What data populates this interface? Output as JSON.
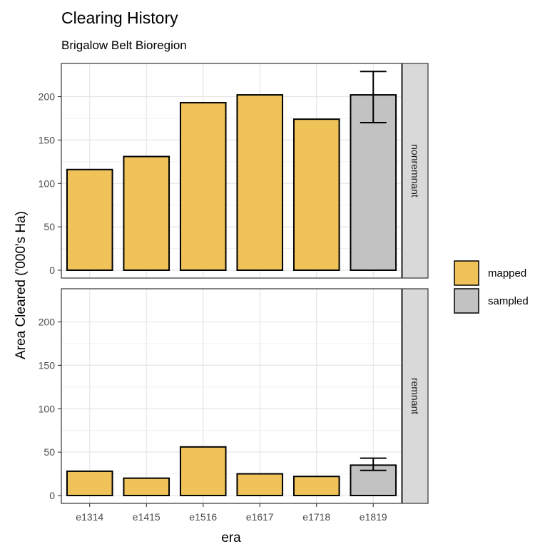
{
  "chart_data": {
    "type": "bar",
    "title": "Clearing History",
    "subtitle": "Brigalow Belt Bioregion",
    "xlabel": "era",
    "ylabel": "Area Cleared ('000's Ha)",
    "categories": [
      "e1314",
      "e1415",
      "e1516",
      "e1617",
      "e1718",
      "e1819"
    ],
    "ylim": [
      0,
      230
    ],
    "y_ticks": [
      0,
      50,
      100,
      150,
      200
    ],
    "grid": true,
    "legend_position": "right",
    "fill_by": "category",
    "legend": [
      {
        "label": "mapped",
        "color": "#f0c35a"
      },
      {
        "label": "sampled",
        "color": "#c2c2c2"
      }
    ],
    "panels": [
      {
        "strip": "nonremnant",
        "values": [
          116,
          131,
          193,
          202,
          174,
          202
        ],
        "fill": [
          "mapped",
          "mapped",
          "mapped",
          "mapped",
          "mapped",
          "sampled"
        ],
        "error_bars": [
          null,
          null,
          null,
          null,
          null,
          [
            170,
            229
          ]
        ]
      },
      {
        "strip": "remnant",
        "values": [
          28,
          20,
          56,
          25,
          22,
          35
        ],
        "fill": [
          "mapped",
          "mapped",
          "mapped",
          "mapped",
          "mapped",
          "sampled"
        ],
        "error_bars": [
          null,
          null,
          null,
          null,
          null,
          [
            29,
            43
          ]
        ]
      }
    ]
  }
}
